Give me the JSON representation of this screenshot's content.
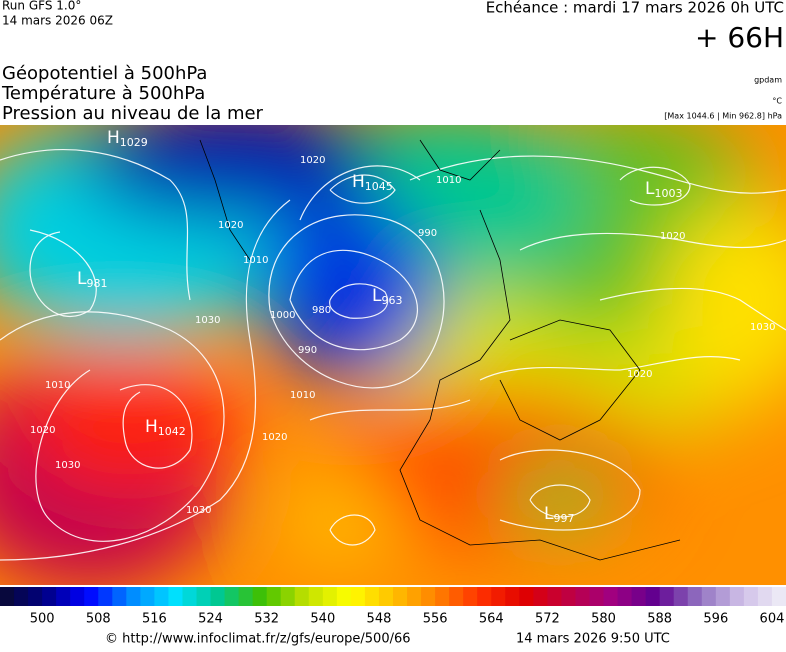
{
  "header": {
    "run": "Run GFS 1.0°",
    "run_date": "14 mars 2026 06Z",
    "valid_time": "Echéance : mardi 17 mars 2026 0h UTC",
    "lead": "+ 66H"
  },
  "fields": [
    "Géopotentiel à 500hPa",
    "Température à 500hPa",
    "Pression au niveau de la mer"
  ],
  "units": {
    "geopotential": "gpdam",
    "temperature": "°C",
    "pressure": "[Max 1044.6 | Min 962.8] hPa"
  },
  "centers": [
    {
      "type": "H",
      "value": 1029
    },
    {
      "type": "H",
      "value": 1045
    },
    {
      "type": "L",
      "value": 981
    },
    {
      "type": "L",
      "value": 963
    },
    {
      "type": "L",
      "value": 1003
    },
    {
      "type": "H",
      "value": 1042
    },
    {
      "type": "L",
      "value": 997
    }
  ],
  "isobar_labels": [
    1020,
    1020,
    1010,
    1010,
    990,
    1000,
    980,
    990,
    1010,
    1030,
    1020,
    1030,
    1010,
    1020,
    1030,
    1020,
    1020,
    1030
  ],
  "colorbar": {
    "range": [
      494,
      606
    ],
    "ticks": [
      500,
      508,
      516,
      524,
      532,
      540,
      548,
      556,
      564,
      572,
      580,
      588,
      596,
      604
    ]
  },
  "footer": {
    "url": "© http://www.infoclimat.fr/z/gfs/europe/500/66",
    "generated": "14 mars 2026  9:50 UTC"
  }
}
